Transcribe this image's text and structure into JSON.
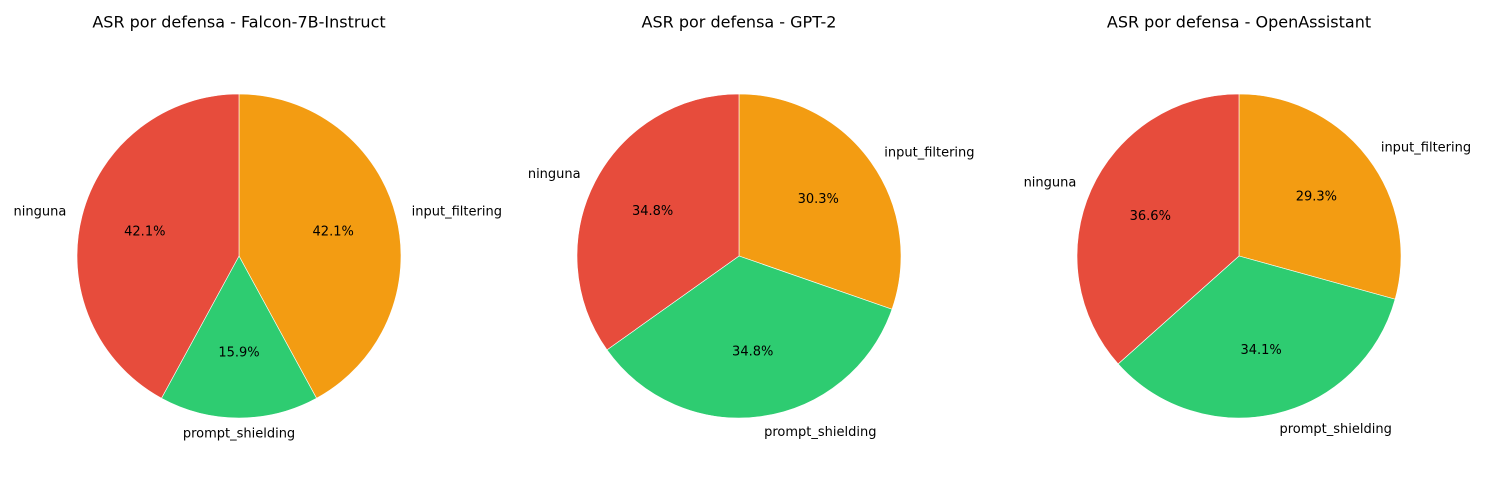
{
  "chart_data": [
    {
      "type": "pie",
      "title": "ASR por defensa - Falcon-7B-Instruct",
      "categories": [
        "input_filtering",
        "prompt_shielding",
        "ninguna"
      ],
      "values": [
        42.1,
        15.9,
        42.1
      ],
      "labels": [
        "42.1%",
        "15.9%",
        "42.1%"
      ],
      "colors": [
        "#f39c12",
        "#2ecc71",
        "#e74c3c"
      ]
    },
    {
      "type": "pie",
      "title": "ASR por defensa - GPT-2",
      "categories": [
        "input_filtering",
        "prompt_shielding",
        "ninguna"
      ],
      "values": [
        30.3,
        34.8,
        34.8
      ],
      "labels": [
        "30.3%",
        "34.8%",
        "34.8%"
      ],
      "colors": [
        "#f39c12",
        "#2ecc71",
        "#e74c3c"
      ]
    },
    {
      "type": "pie",
      "title": "ASR por defensa - OpenAssistant",
      "categories": [
        "input_filtering",
        "prompt_shielding",
        "ninguna"
      ],
      "values": [
        29.3,
        34.1,
        36.6
      ],
      "labels": [
        "29.3%",
        "34.1%",
        "36.6%"
      ],
      "colors": [
        "#f39c12",
        "#2ecc71",
        "#e74c3c"
      ]
    }
  ]
}
